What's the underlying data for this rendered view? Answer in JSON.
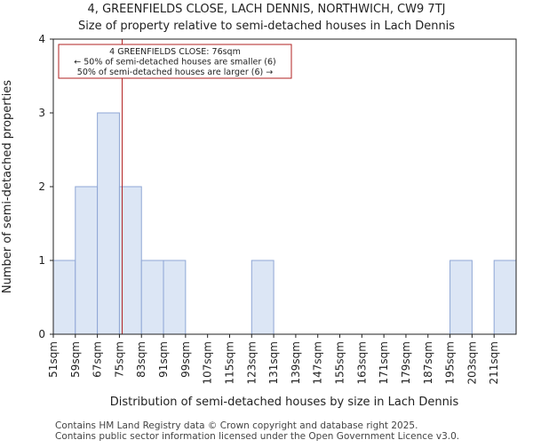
{
  "chart_data": {
    "type": "bar",
    "title": "4, GREENFIELDS CLOSE, LACH DENNIS, NORTHWICH, CW9 7TJ",
    "subtitle": "Size of property relative to semi-detached houses in Lach Dennis",
    "xlabel": "Distribution of semi-detached houses by size in Lach Dennis",
    "ylabel": "Number of semi-detached properties",
    "categories": [
      "51sqm",
      "59sqm",
      "67sqm",
      "75sqm",
      "83sqm",
      "91sqm",
      "99sqm",
      "107sqm",
      "115sqm",
      "123sqm",
      "131sqm",
      "139sqm",
      "147sqm",
      "155sqm",
      "163sqm",
      "171sqm",
      "179sqm",
      "187sqm",
      "195sqm",
      "203sqm",
      "211sqm"
    ],
    "bin_edges": [
      51,
      59,
      67,
      75,
      83,
      91,
      99,
      107,
      115,
      123,
      131,
      139,
      147,
      155,
      163,
      171,
      179,
      187,
      195,
      203,
      211,
      219
    ],
    "values": [
      1,
      2,
      3,
      2,
      1,
      1,
      0,
      0,
      0,
      1,
      0,
      0,
      0,
      0,
      0,
      0,
      0,
      0,
      1,
      0,
      1
    ],
    "yticks": [
      0,
      1,
      2,
      3,
      4
    ],
    "ylim": [
      0,
      4
    ],
    "bar_color": "#dce6f5",
    "bar_edge_color": "#8fa7d6",
    "marker": {
      "value": 76,
      "color": "#b22222",
      "label_lines": [
        "4 GREENFIELDS CLOSE: 76sqm",
        "← 50% of semi-detached houses are smaller (6)",
        "50% of semi-detached houses are larger (6) →"
      ]
    },
    "grid": false
  },
  "footer": {
    "line1": "Contains HM Land Registry data © Crown copyright and database right 2025.",
    "line2": "Contains public sector information licensed under the Open Government Licence v3.0."
  }
}
